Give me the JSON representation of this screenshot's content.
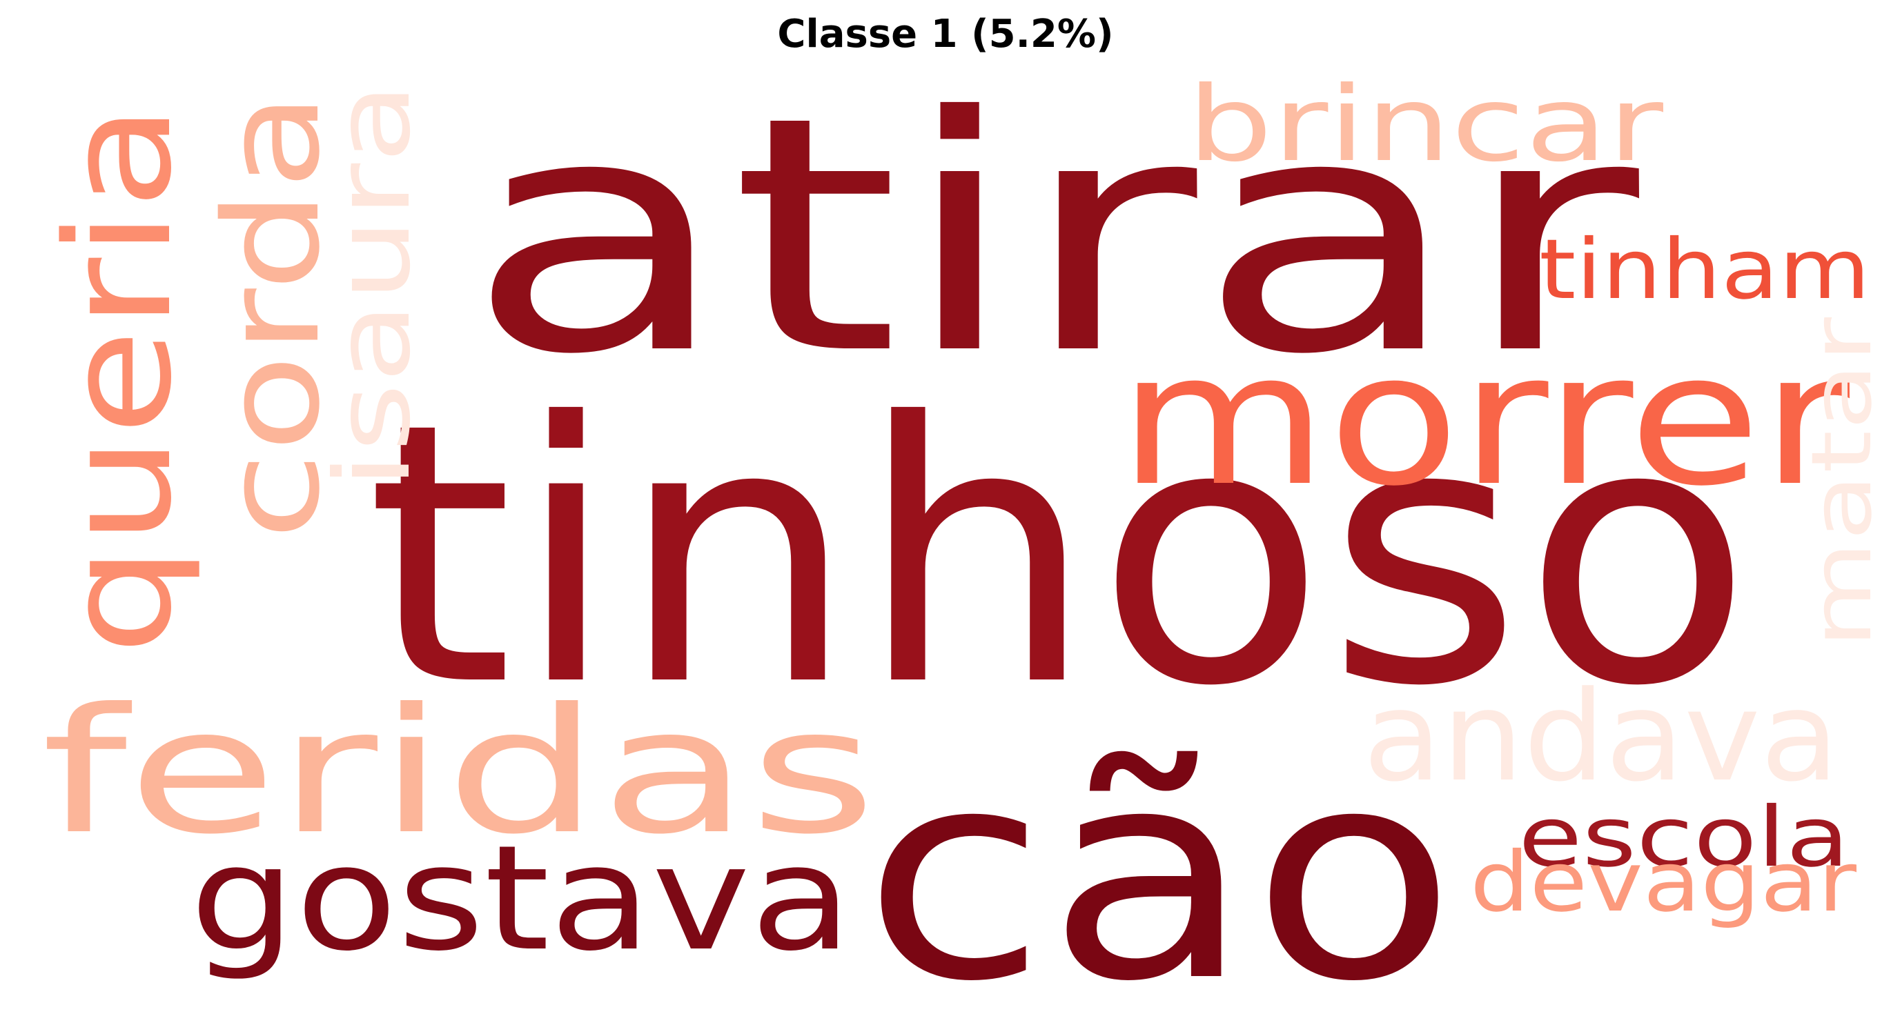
{
  "title": "Classe 1 (5.2%)",
  "words": [
    {
      "text": "tinhoso",
      "color": "#99111b",
      "orientation": "horizontal"
    },
    {
      "text": "atirar",
      "color": "#8e0e18",
      "orientation": "horizontal"
    },
    {
      "text": "cão",
      "color": "#7a0613",
      "orientation": "horizontal"
    },
    {
      "text": "morrer",
      "color": "#f96548",
      "orientation": "horizontal"
    },
    {
      "text": "feridas",
      "color": "#fcb599",
      "orientation": "horizontal"
    },
    {
      "text": "gostava",
      "color": "#7d0915",
      "orientation": "horizontal"
    },
    {
      "text": "queria",
      "color": "#fc8e6f",
      "orientation": "vertical"
    },
    {
      "text": "corda",
      "color": "#fcb599",
      "orientation": "vertical"
    },
    {
      "text": "isaura",
      "color": "#fee6dc",
      "orientation": "vertical"
    },
    {
      "text": "brincar",
      "color": "#fdbda3",
      "orientation": "horizontal"
    },
    {
      "text": "tinham",
      "color": "#f05038",
      "orientation": "horizontal"
    },
    {
      "text": "matar",
      "color": "#feebe3",
      "orientation": "vertical"
    },
    {
      "text": "andava",
      "color": "#feeae2",
      "orientation": "horizontal"
    },
    {
      "text": "escola",
      "color": "#a01820",
      "orientation": "horizontal"
    },
    {
      "text": "devagar",
      "color": "#fc9a7d",
      "orientation": "horizontal"
    }
  ]
}
